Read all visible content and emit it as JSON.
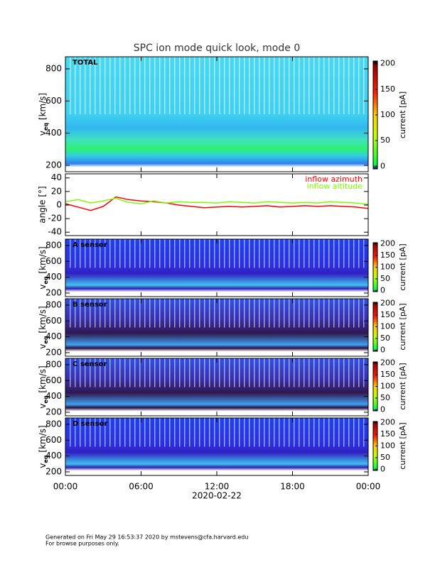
{
  "chart_data": [
    {
      "type": "spectrogram",
      "title": "SPC ion mode quick look, mode 0",
      "label": "TOTAL",
      "ylabel": [
        "v",
        "eq",
        " [km/s]"
      ],
      "ylim": [
        160,
        875
      ],
      "yticks": [
        200,
        400,
        600,
        800
      ],
      "colorbar_label": "current [pA]",
      "clim": [
        -5,
        205
      ],
      "cticks": [
        0,
        50,
        100,
        150,
        200
      ],
      "palette": "total"
    },
    {
      "type": "line",
      "ylabel": "angle [°]",
      "ylim": [
        -45,
        46
      ],
      "yticks": [
        -40,
        -20,
        0,
        20,
        40
      ],
      "x": [
        0,
        1,
        2,
        3,
        4,
        5,
        6,
        7,
        8,
        9,
        10,
        11,
        12,
        13,
        14,
        15,
        16,
        17,
        18,
        19,
        20,
        21,
        22,
        23,
        24
      ],
      "series": [
        {
          "name": "inflow azimuth",
          "color": "#ff0000",
          "values": [
            2,
            -3,
            -8,
            -2,
            12,
            8,
            6,
            5,
            3,
            0,
            -2,
            -4,
            -3,
            -2,
            -3,
            -2,
            -1,
            -3,
            -2,
            -1,
            -2,
            -1,
            -2,
            -3,
            -5
          ]
        },
        {
          "name": "inflow altitude",
          "color": "#7cfc00",
          "values": [
            5,
            8,
            3,
            6,
            10,
            4,
            2,
            6,
            3,
            5,
            4,
            4,
            3,
            5,
            4,
            3,
            5,
            4,
            3,
            4,
            3,
            5,
            4,
            3,
            1
          ]
        }
      ]
    },
    {
      "type": "spectrogram",
      "label": "A sensor",
      "ylabel": [
        "v",
        "eq",
        " [km/s]"
      ],
      "ylim": [
        155,
        880
      ],
      "yticks": [
        200,
        400,
        600,
        800
      ],
      "colorbar_label": "current [pA]",
      "clim": [
        -5,
        205
      ],
      "cticks": [
        0,
        50,
        100,
        150,
        200
      ],
      "palette": "blue"
    },
    {
      "type": "spectrogram",
      "label": "B sensor",
      "ylabel": [
        "v",
        "eq",
        " [km/s]"
      ],
      "ylim": [
        155,
        880
      ],
      "yticks": [
        200,
        400,
        600,
        800
      ],
      "colorbar_label": "current [pA]",
      "clim": [
        -5,
        205
      ],
      "cticks": [
        0,
        50,
        100,
        150,
        200
      ],
      "palette": "purple"
    },
    {
      "type": "spectrogram",
      "label": "C sensor",
      "ylabel": [
        "v",
        "eq",
        " [km/s]"
      ],
      "ylim": [
        155,
        880
      ],
      "yticks": [
        200,
        400,
        600,
        800
      ],
      "colorbar_label": "current [pA]",
      "clim": [
        -5,
        205
      ],
      "cticks": [
        0,
        50,
        100,
        150,
        200
      ],
      "palette": "purple"
    },
    {
      "type": "spectrogram",
      "label": "D sensor",
      "ylabel": [
        "v",
        "eq",
        " [km/s]"
      ],
      "ylim": [
        155,
        880
      ],
      "yticks": [
        200,
        400,
        600,
        800
      ],
      "colorbar_label": "current [pA]",
      "clim": [
        -5,
        205
      ],
      "cticks": [
        0,
        50,
        100,
        150,
        200
      ],
      "palette": "blue",
      "xlabel": "2020-02-22",
      "xlim": [
        0,
        24
      ],
      "xticks": [
        {
          "value": 0,
          "label": "00:00"
        },
        {
          "value": 6,
          "label": "06:00"
        },
        {
          "value": 12,
          "label": "12:00"
        },
        {
          "value": 18,
          "label": "18:00"
        },
        {
          "value": 24,
          "label": "00:00"
        }
      ]
    }
  ],
  "footer": [
    "Generated on Fri May 29 16:53:37 2020 by mstevens@cfa.harvard.edu",
    "For browse purposes only."
  ]
}
